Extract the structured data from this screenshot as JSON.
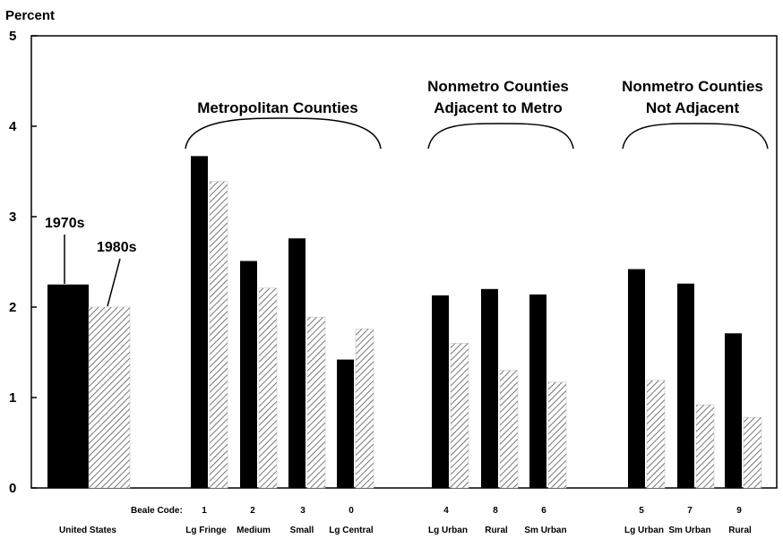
{
  "chart_data": {
    "type": "bar",
    "ylabel": "Percent",
    "ylim": [
      0,
      5
    ],
    "yticks": [
      0,
      1,
      2,
      3,
      4,
      5
    ],
    "grid": false,
    "series": [
      {
        "name": "1970s",
        "color": "#000000",
        "values": [
          2.25,
          3.67,
          2.51,
          2.76,
          1.42,
          2.13,
          2.2,
          2.14,
          2.42,
          2.26,
          1.71
        ]
      },
      {
        "name": "1980s",
        "color": "hatched",
        "values": [
          2.0,
          3.39,
          2.21,
          1.89,
          1.76,
          1.6,
          1.3,
          1.17,
          1.19,
          0.92,
          0.78
        ]
      }
    ],
    "categories": [
      {
        "code": "",
        "label": "United States"
      },
      {
        "code": "1",
        "label": "Lg Fringe"
      },
      {
        "code": "2",
        "label": "Medium"
      },
      {
        "code": "3",
        "label": "Small"
      },
      {
        "code": "0",
        "label": "Lg Central"
      },
      {
        "code": "4",
        "label": "Lg Urban"
      },
      {
        "code": "8",
        "label": "Rural"
      },
      {
        "code": "6",
        "label": "Sm Urban"
      },
      {
        "code": "5",
        "label": "Lg Urban"
      },
      {
        "code": "7",
        "label": "Sm Urban"
      },
      {
        "code": "9",
        "label": "Rural"
      }
    ],
    "beale_code_label": "Beale Code:",
    "groups": [
      {
        "lines": [
          "Metropolitan Counties"
        ]
      },
      {
        "lines": [
          "Nonmetro Counties",
          "Adjacent to Metro"
        ]
      },
      {
        "lines": [
          "Nonmetro Counties",
          "Not Adjacent"
        ]
      }
    ]
  }
}
